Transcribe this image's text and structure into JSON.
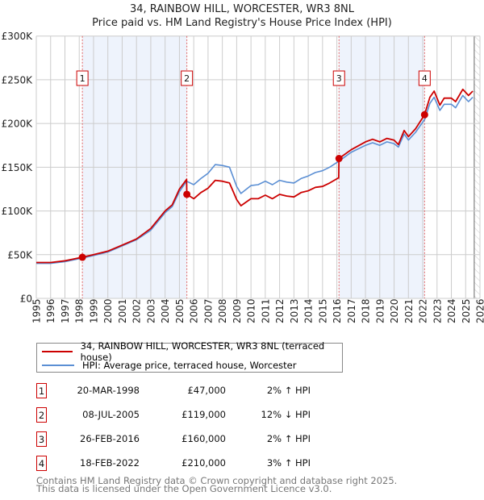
{
  "chart_data": {
    "type": "line",
    "title": "34, RAINBOW HILL, WORCESTER, WR3 8NL",
    "subtitle": "Price paid vs. HM Land Registry's House Price Index (HPI)",
    "xlim": [
      1995,
      2026
    ],
    "ylim": [
      0,
      300000
    ],
    "x_ticks": [
      "1995",
      "1996",
      "1997",
      "1998",
      "1999",
      "2000",
      "2001",
      "2002",
      "2003",
      "2004",
      "2005",
      "2006",
      "2007",
      "2008",
      "2009",
      "2010",
      "2011",
      "2012",
      "2013",
      "2014",
      "2015",
      "2016",
      "2017",
      "2018",
      "2019",
      "2020",
      "2021",
      "2022",
      "2023",
      "2024",
      "2025",
      "2026"
    ],
    "y_ticks": [
      {
        "v": 0,
        "label": "£0"
      },
      {
        "v": 50000,
        "label": "£50K"
      },
      {
        "v": 100000,
        "label": "£100K"
      },
      {
        "v": 150000,
        "label": "£150K"
      },
      {
        "v": 200000,
        "label": "£200K"
      },
      {
        "v": 250000,
        "label": "£250K"
      },
      {
        "v": 300000,
        "label": "£300K"
      }
    ],
    "grid": true,
    "future_from": 2025.6,
    "series": [
      {
        "name": "34, RAINBOW HILL, WORCESTER, WR3 8NL (terraced house)",
        "color": "#cc0000",
        "x": [
          1995,
          1996,
          1997,
          1998.2,
          1999,
          2000,
          2001,
          2002,
          2003,
          2004,
          2004.5,
          2005,
          2005.5,
          2005.52,
          2006,
          2006.5,
          2007,
          2007.5,
          2008,
          2008.5,
          2009,
          2009.3,
          2010,
          2010.5,
          2011,
          2011.5,
          2012,
          2012.5,
          2013,
          2013.5,
          2014,
          2014.5,
          2015,
          2015.5,
          2016.13,
          2016.15,
          2017,
          2018,
          2018.5,
          2019,
          2019.5,
          2020,
          2020.3,
          2020.7,
          2021,
          2021.5,
          2022.13,
          2022.5,
          2022.8,
          2023.2,
          2023.5,
          2024,
          2024.3,
          2024.8,
          2025.2,
          2025.5
        ],
        "y": [
          41000,
          41000,
          43000,
          47000,
          50000,
          54000,
          61000,
          68000,
          80000,
          100000,
          107000,
          125000,
          136000,
          119000,
          114000,
          121000,
          126000,
          135000,
          134000,
          132000,
          113000,
          106000,
          114000,
          114000,
          118000,
          114000,
          119000,
          117000,
          116000,
          121000,
          123000,
          127000,
          128000,
          132000,
          138000,
          160000,
          170000,
          179000,
          182000,
          179000,
          183000,
          181000,
          176000,
          192000,
          185000,
          194000,
          210000,
          230000,
          237000,
          221000,
          229000,
          229000,
          225000,
          239000,
          232000,
          237000
        ]
      },
      {
        "name": "HPI: Average price, terraced house, Worcester",
        "color": "#5b8fd4",
        "x": [
          1995,
          1996,
          1997,
          1998.2,
          1999,
          2000,
          2001,
          2002,
          2003,
          2004,
          2004.5,
          2005,
          2005.5,
          2006,
          2006.5,
          2007,
          2007.5,
          2008,
          2008.5,
          2009,
          2009.3,
          2010,
          2010.5,
          2011,
          2011.5,
          2012,
          2012.5,
          2013,
          2013.5,
          2014,
          2014.5,
          2015,
          2015.5,
          2016.15,
          2017,
          2018,
          2018.5,
          2019,
          2019.5,
          2020,
          2020.3,
          2020.7,
          2021,
          2021.5,
          2022.15,
          2022.5,
          2022.8,
          2023.2,
          2023.5,
          2024,
          2024.3,
          2024.8,
          2025.2,
          2025.5
        ],
        "y": [
          40000,
          40000,
          42000,
          46000,
          49000,
          53000,
          60000,
          67000,
          78000,
          98000,
          105000,
          122000,
          134000,
          130000,
          137000,
          143000,
          153000,
          152000,
          150000,
          128000,
          120000,
          129000,
          130000,
          134000,
          130000,
          135000,
          133000,
          132000,
          137000,
          140000,
          144000,
          146000,
          150000,
          157000,
          167000,
          175000,
          178000,
          175000,
          179000,
          177000,
          173000,
          188000,
          181000,
          190000,
          205000,
          223000,
          230000,
          215000,
          222000,
          222000,
          218000,
          232000,
          225000,
          230000
        ]
      }
    ],
    "sales": [
      {
        "n": "1",
        "x": 1998.22,
        "price": 47000,
        "date": "20-MAR-1998",
        "price_label": "£47,000",
        "hpi": "2% ↑ HPI"
      },
      {
        "n": "2",
        "x": 2005.52,
        "price": 119000,
        "date": "08-JUL-2005",
        "price_label": "£119,000",
        "hpi": "12% ↓ HPI"
      },
      {
        "n": "3",
        "x": 2016.15,
        "price": 160000,
        "date": "26-FEB-2016",
        "price_label": "£160,000",
        "hpi": "2% ↑ HPI"
      },
      {
        "n": "4",
        "x": 2022.13,
        "price": 210000,
        "date": "18-FEB-2022",
        "price_label": "£210,000",
        "hpi": "3% ↑ HPI"
      }
    ]
  },
  "legend": {
    "property": "34, RAINBOW HILL, WORCESTER, WR3 8NL (terraced house)",
    "hpi": "HPI: Average price, terraced house, Worcester"
  },
  "footer": {
    "line1": "Contains HM Land Registry data © Crown copyright and database right 2025.",
    "line2": "This data is licensed under the Open Government Licence v3.0."
  }
}
